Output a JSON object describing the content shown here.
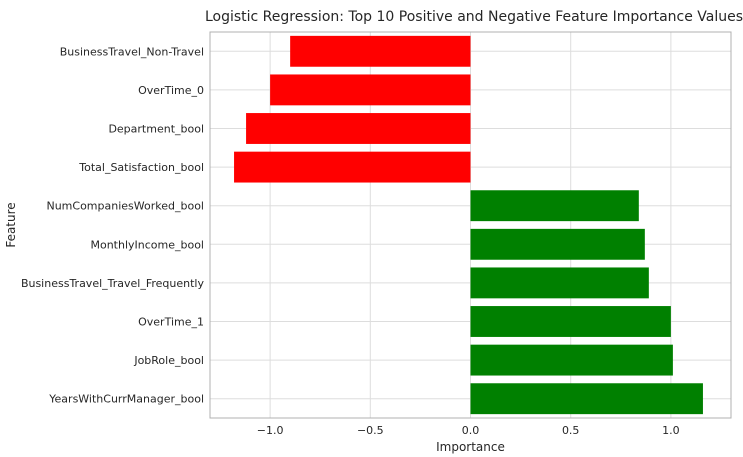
{
  "chart_data": {
    "type": "bar",
    "orientation": "horizontal",
    "title": "Logistic Regression: Top 10 Positive and Negative Feature Importance Values",
    "xlabel": "Importance",
    "ylabel": "Feature",
    "xlim": [
      -1.3,
      1.3
    ],
    "xticks": [
      -1.0,
      -0.5,
      0.0,
      0.5,
      1.0
    ],
    "xtick_labels": [
      "−1.0",
      "−0.5",
      "0.0",
      "0.5",
      "1.0"
    ],
    "grid": true,
    "categories": [
      "BusinessTravel_Non-Travel",
      "OverTime_0",
      "Department_bool",
      "Total_Satisfaction_bool",
      "NumCompaniesWorked_bool",
      "MonthlyIncome_bool",
      "BusinessTravel_Travel_Frequently",
      "OverTime_1",
      "JobRole_bool",
      "YearsWithCurrManager_bool"
    ],
    "values": [
      -0.9,
      -1.0,
      -1.12,
      -1.18,
      0.84,
      0.87,
      0.89,
      1.0,
      1.01,
      1.16
    ],
    "colors": {
      "negative": "#ff0000",
      "positive": "#008000",
      "frame": "#b0b0b0"
    }
  }
}
